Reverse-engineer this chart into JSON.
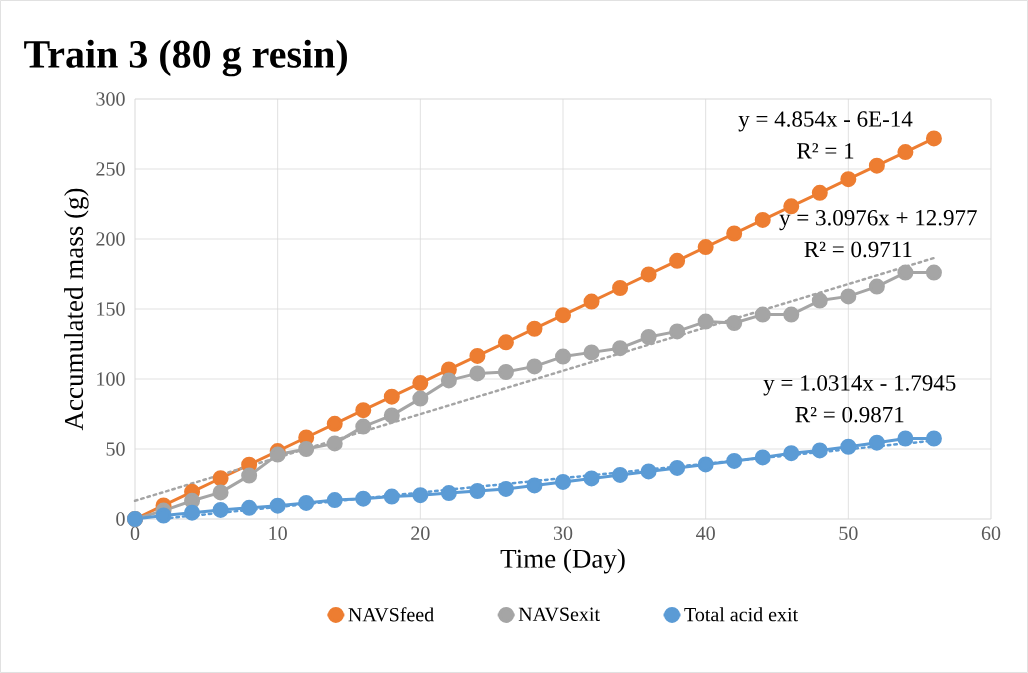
{
  "chart_data": {
    "type": "line",
    "title": "Train 3 (80 g resin)",
    "xlabel": "Time (Day)",
    "ylabel": "Accumulated mass (g)",
    "xlim": [
      0,
      60
    ],
    "xticks": [
      0,
      10,
      20,
      30,
      40,
      50,
      60
    ],
    "ylim": [
      0,
      300
    ],
    "yticks": [
      0,
      50,
      100,
      150,
      200,
      250,
      300
    ],
    "grid": true,
    "legend": "bottom",
    "marker": "circle",
    "series": [
      {
        "name": "NAVSfeed",
        "color": "#ed7d31",
        "x": [
          0,
          2,
          4,
          6,
          8,
          10,
          12,
          14,
          16,
          18,
          20,
          22,
          24,
          26,
          28,
          30,
          32,
          34,
          36,
          38,
          40,
          42,
          44,
          46,
          48,
          50,
          52,
          54,
          56
        ],
        "values": [
          0,
          9.7,
          19.4,
          29.1,
          38.8,
          48.5,
          58.2,
          68,
          77.7,
          87.4,
          97.1,
          106.8,
          116.5,
          126.2,
          135.9,
          145.6,
          155.3,
          165,
          174.7,
          184.4,
          194.2,
          203.9,
          213.6,
          223.3,
          233,
          242.7,
          252.4,
          262.1,
          271.8
        ]
      },
      {
        "name": "NAVSexit",
        "color": "#a5a5a5",
        "x": [
          0,
          2,
          4,
          6,
          8,
          10,
          12,
          14,
          16,
          18,
          20,
          22,
          24,
          26,
          28,
          30,
          32,
          34,
          36,
          38,
          40,
          42,
          44,
          46,
          48,
          50,
          52,
          54,
          56
        ],
        "values": [
          0,
          6,
          13,
          19,
          31,
          46,
          50,
          54,
          66,
          74,
          86,
          99,
          104,
          105,
          109,
          116,
          119,
          122,
          130,
          134,
          141,
          140,
          146,
          146,
          156,
          159,
          166,
          176,
          176
        ]
      },
      {
        "name": "Total acid exit",
        "color": "#5b9bd5",
        "x": [
          0,
          2,
          4,
          6,
          8,
          10,
          12,
          14,
          16,
          18,
          20,
          22,
          24,
          26,
          28,
          30,
          32,
          34,
          36,
          38,
          40,
          42,
          44,
          46,
          48,
          50,
          52,
          54,
          56
        ],
        "values": [
          0,
          2.5,
          4.5,
          6.5,
          8,
          9.5,
          11.5,
          13.5,
          14.5,
          16,
          17,
          18.5,
          20,
          21.5,
          24,
          26.5,
          29,
          31.5,
          34,
          36.5,
          39,
          41.5,
          44,
          47,
          49,
          51.6,
          54.5,
          57.5,
          57.5
        ]
      },
      {
        "type": "line",
        "color": "#a5a5a5",
        "line_style": "dotted",
        "marker": "none",
        "x": [
          0,
          56
        ],
        "values": [
          13,
          186.4
        ]
      },
      {
        "type": "line",
        "color": "#5b9bd5",
        "line_style": "dotted",
        "marker": "none",
        "x": [
          2,
          56
        ],
        "values": [
          0.3,
          56
        ]
      }
    ],
    "annotations": [
      "y = 4.854x - 6E-14",
      "R² = 1",
      "y = 3.0976x + 12.977",
      "R² = 0.9711",
      "y = 1.0314x - 1.7945",
      "R² = 0.9871"
    ]
  }
}
